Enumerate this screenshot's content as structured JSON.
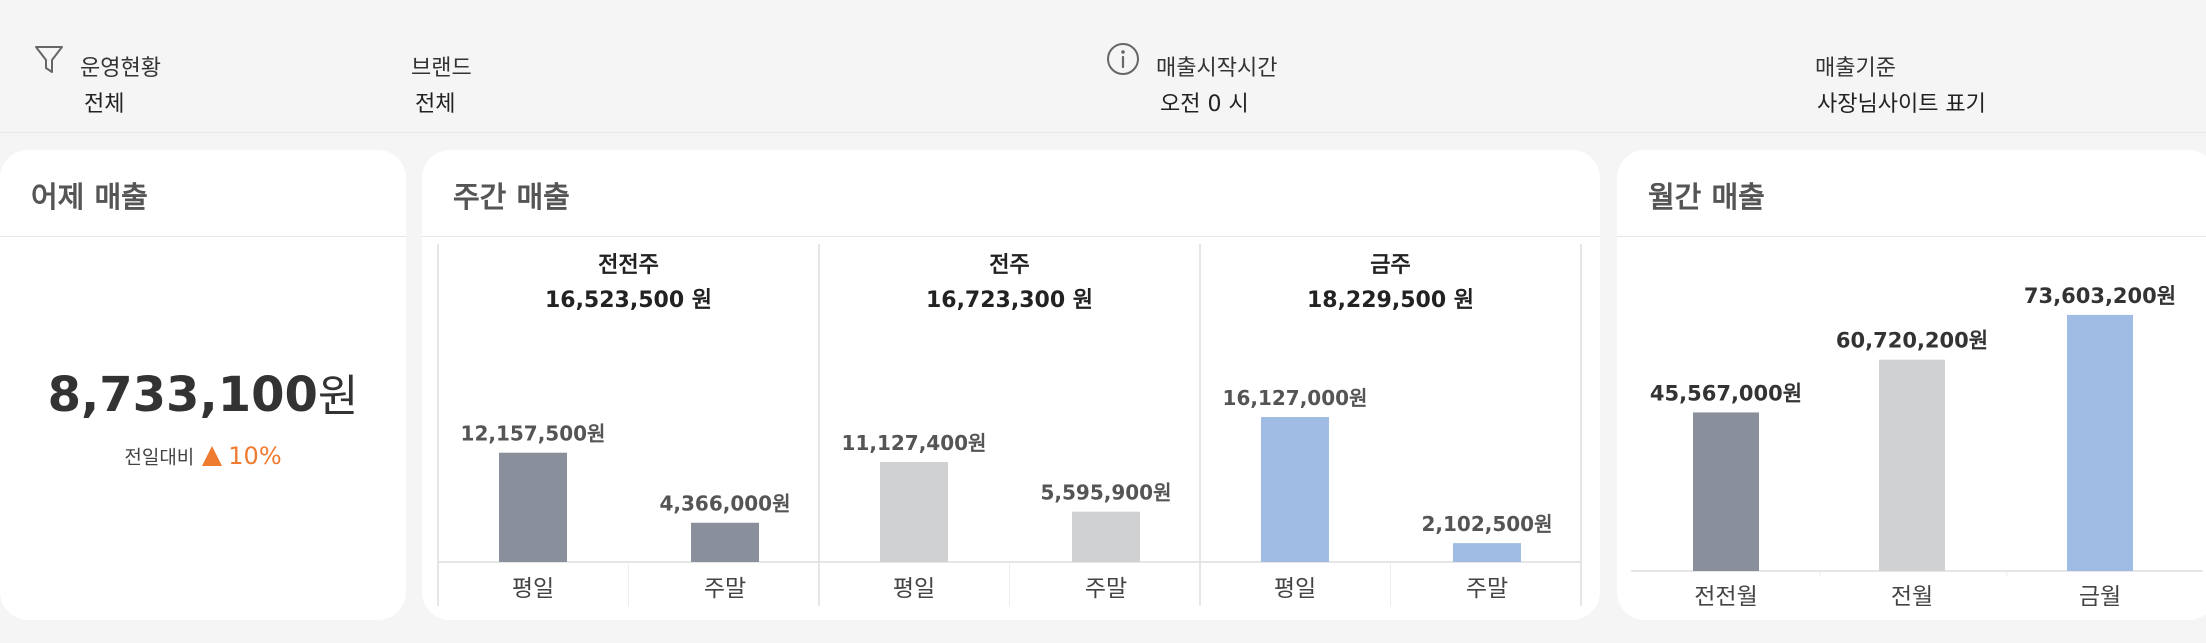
{
  "filters": {
    "operation": {
      "label": "운영현황",
      "value": "전체",
      "icon": "filter-icon"
    },
    "brand": {
      "label": "브랜드",
      "value": "전체"
    },
    "start_time": {
      "label": "매출시작시간",
      "value": "오전 0 시",
      "icon": "info-icon"
    },
    "basis": {
      "label": "매출기준",
      "value": "사장님사이트 표기"
    }
  },
  "yesterday": {
    "title": "어제 매출",
    "amount": "8,733,100",
    "unit": "원",
    "compare_label": "전일대비",
    "compare_pct": "10%",
    "trend": "up",
    "trend_color": "#ee7b2f"
  },
  "weekly": {
    "title": "주간 매출",
    "groups": [
      {
        "name": "전전주",
        "total": "16,523,500 원",
        "color": "#8a909b",
        "bars": [
          {
            "label": "평일",
            "value": 12157500,
            "text": "12,157,500원"
          },
          {
            "label": "주말",
            "value": 4366000,
            "text": "4,366,000원"
          }
        ]
      },
      {
        "name": "전주",
        "total": "16,723,300 원",
        "color": "#d0d1d2",
        "bars": [
          {
            "label": "평일",
            "value": 11127400,
            "text": "11,127,400원"
          },
          {
            "label": "주말",
            "value": 5595900,
            "text": "5,595,900원"
          }
        ]
      },
      {
        "name": "금주",
        "total": "18,229,500 원",
        "color": "#a0bce4",
        "bars": [
          {
            "label": "평일",
            "value": 16127000,
            "text": "16,127,000원"
          },
          {
            "label": "주말",
            "value": 2102500,
            "text": "2,102,500원"
          }
        ]
      }
    ]
  },
  "monthly": {
    "title": "월간 매출",
    "bars": [
      {
        "label": "전전월",
        "value": 45567000,
        "text": "45,567,000원",
        "color": "#8a909b"
      },
      {
        "label": "전월",
        "value": 60720200,
        "text": "60,720,200원",
        "color": "#d0d1d2"
      },
      {
        "label": "금월",
        "value": 73603200,
        "text": "73,603,200원",
        "color": "#a0bce4"
      }
    ]
  }
}
